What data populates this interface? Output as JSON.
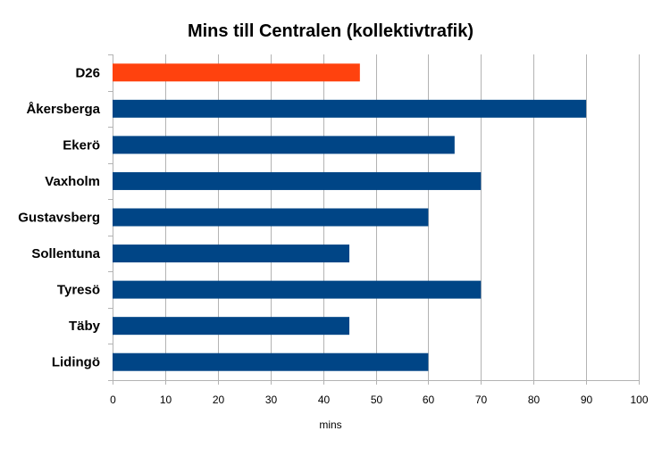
{
  "chart_data": {
    "type": "bar",
    "orientation": "horizontal",
    "title": "Mins till Centralen (kollektivtrafik)",
    "xlabel": "mins",
    "ylabel": "",
    "categories": [
      "D26",
      "Åkersberga",
      "Ekerö",
      "Vaxholm",
      "Gustavsberg",
      "Sollentuna",
      "Tyresö",
      "Täby",
      "Lidingö"
    ],
    "values": [
      47,
      90,
      65,
      70,
      60,
      45,
      70,
      45,
      60
    ],
    "xlim": [
      0,
      100
    ],
    "x_ticks": [
      "0",
      "10",
      "20",
      "30",
      "40",
      "50",
      "60",
      "70",
      "80",
      "90",
      "100"
    ],
    "grid": true,
    "legend": "none",
    "colors": {
      "highlight": "#ff420e",
      "default": "#004586"
    },
    "highlight_index": 0
  }
}
